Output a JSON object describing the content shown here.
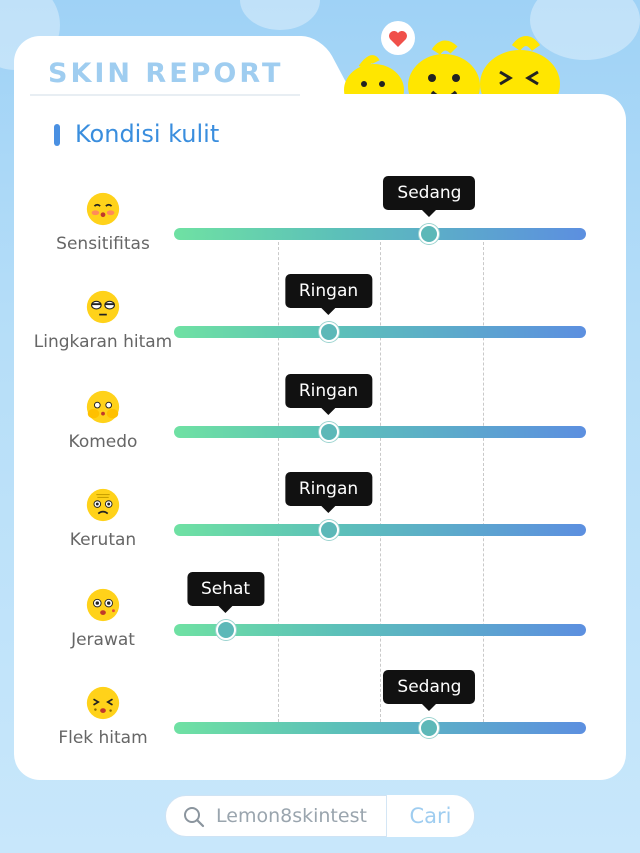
{
  "header": {
    "title": "SKIN REPORT"
  },
  "section": {
    "title": "Kondisi kulit"
  },
  "rows": [
    {
      "label": "Sensitifitas",
      "level": "Sedang",
      "value": 0.62,
      "icon": "blushing-lemon-icon"
    },
    {
      "label": "Lingkaran hitam",
      "level": "Ringan",
      "value": 0.375,
      "icon": "tired-lemon-icon"
    },
    {
      "label": "Komedo",
      "level": "Ringan",
      "value": 0.375,
      "icon": "covering-face-lemon-icon"
    },
    {
      "label": "Kerutan",
      "level": "Ringan",
      "value": 0.375,
      "icon": "wrinkled-lemon-icon"
    },
    {
      "label": "Jerawat",
      "level": "Sehat",
      "value": 0.125,
      "icon": "surprised-lemon-icon"
    },
    {
      "label": "Flek hitam",
      "level": "Sedang",
      "value": 0.62,
      "icon": "spotted-lemon-icon"
    }
  ],
  "search": {
    "query": "Lemon8skintest",
    "button_label": "Cari"
  },
  "colors": {
    "accent": "#3a8ede",
    "tooltip": "#111111",
    "track_start": "#6fe1a3",
    "track_end": "#5c8fe0"
  }
}
